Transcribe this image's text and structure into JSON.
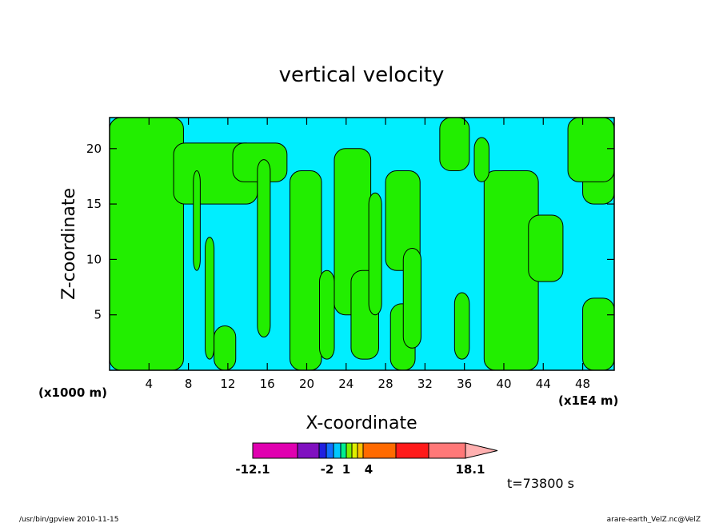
{
  "chart_data": {
    "type": "heatmap",
    "title": "vertical velocity",
    "xlabel": "X-coordinate",
    "ylabel": "Z-coordinate",
    "x_unit_left": "(x1000 m)",
    "x_unit_right": "(x1E4 m)",
    "x_ticks": [
      "4",
      "8",
      "12",
      "16",
      "20",
      "24",
      "28",
      "32",
      "36",
      "40",
      "44",
      "48"
    ],
    "y_ticks": [
      "5",
      "10",
      "15",
      "20"
    ],
    "xlim": [
      0,
      51.2
    ],
    "ylim": [
      0,
      22.8
    ],
    "colors": {
      "positive": "#22ee00",
      "negative": "#00eeff",
      "contour": "#000000"
    },
    "colorbar": {
      "colors": [
        "#e000b0",
        "#8010c0",
        "#2020e0",
        "#1070ff",
        "#00c8ff",
        "#00ee90",
        "#80ee00",
        "#e0ee00",
        "#ffc000",
        "#ff6a00",
        "#ff1a1a",
        "#ff7878",
        "#ffb0b0"
      ],
      "labels": [
        "-12.1",
        "-2",
        "1",
        "4",
        "18.1"
      ]
    },
    "positive_regions": [
      {
        "x": [
          0,
          7.5
        ],
        "y": [
          0,
          22.8
        ]
      },
      {
        "x": [
          6.5,
          15
        ],
        "y": [
          15,
          20.5
        ]
      },
      {
        "x": [
          12.5,
          18
        ],
        "y": [
          17,
          20.5
        ]
      },
      {
        "x": [
          8.5,
          9.2
        ],
        "y": [
          9,
          18
        ]
      },
      {
        "x": [
          9.7,
          10.6
        ],
        "y": [
          1,
          12
        ]
      },
      {
        "x": [
          10.6,
          12.8
        ],
        "y": [
          0,
          4
        ]
      },
      {
        "x": [
          15,
          16.3
        ],
        "y": [
          3,
          19
        ]
      },
      {
        "x": [
          18.3,
          21.5
        ],
        "y": [
          0,
          18
        ]
      },
      {
        "x": [
          21.3,
          22.8
        ],
        "y": [
          1,
          9
        ]
      },
      {
        "x": [
          22.8,
          26.5
        ],
        "y": [
          5,
          20
        ]
      },
      {
        "x": [
          24.5,
          27.3
        ],
        "y": [
          1,
          9
        ]
      },
      {
        "x": [
          26.3,
          27.6
        ],
        "y": [
          5,
          16
        ]
      },
      {
        "x": [
          28,
          31.5
        ],
        "y": [
          9,
          18
        ]
      },
      {
        "x": [
          28.5,
          31
        ],
        "y": [
          0,
          6
        ]
      },
      {
        "x": [
          29.8,
          31.6
        ],
        "y": [
          2,
          11
        ]
      },
      {
        "x": [
          33.5,
          36.5
        ],
        "y": [
          18,
          22.8
        ]
      },
      {
        "x": [
          38,
          43.5
        ],
        "y": [
          0,
          18
        ]
      },
      {
        "x": [
          42.5,
          46
        ],
        "y": [
          8,
          14
        ]
      },
      {
        "x": [
          48,
          51.2
        ],
        "y": [
          0,
          6.5
        ]
      },
      {
        "x": [
          48,
          51.2
        ],
        "y": [
          15,
          20
        ]
      },
      {
        "x": [
          46.5,
          51.2
        ],
        "y": [
          17,
          22.8
        ]
      },
      {
        "x": [
          37,
          38.5
        ],
        "y": [
          17,
          21
        ]
      },
      {
        "x": [
          35,
          36.5
        ],
        "y": [
          1,
          7
        ]
      }
    ],
    "time_label": "t=73800 s"
  },
  "footer": {
    "left": "/usr/bin/gpview   2010-11-15",
    "right": "arare-earth_VelZ.nc@VelZ"
  }
}
